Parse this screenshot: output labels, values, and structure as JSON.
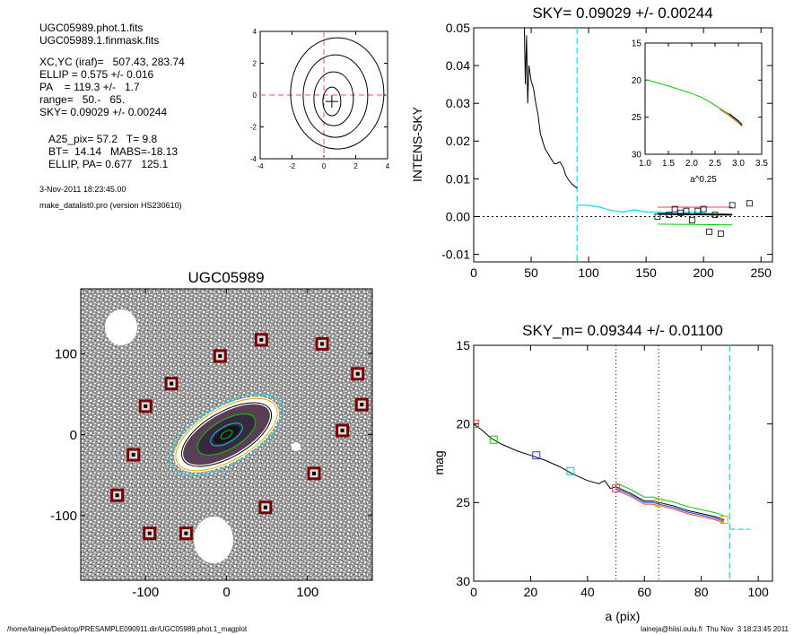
{
  "info": {
    "lines": [
      "UGC05989.phot.1.fits",
      "UGC05989.1.finmask.fits",
      "XC,YC (iraf)=   507.43, 283.74",
      "ELLIP = 0.575 +/- 0.016",
      "PA    = 119.3 +/-   1.7",
      "range=   50.-   65.",
      "SKY= 0.09029 +/- 0.00244",
      "A25_pix= 57.2   T= 9.8",
      "BT=  14.14   MABS=-18.13",
      "ELLIP, PA= 0.677   125.1"
    ],
    "date": "3-Nov-2011 18:23:45.00",
    "program": "make_datalist0.pro (version HS230610)"
  },
  "footer": {
    "left": "/home/laineja/Desktop/PRESAMPLE090911.dir/UGC05989.phot.1_magplot",
    "right": "laineja@hiisi.oulu.fi  Thu Nov  3 18:23:45 2011"
  },
  "colors": {
    "sky_line": "#00e0ff",
    "red": "#ff4040",
    "green": "#00cc00",
    "blue": "#2040ff",
    "yellow": "#d0b000",
    "mask": "#7a0000"
  },
  "chart_data": [
    {
      "type": "contour",
      "title": "",
      "xlim": [
        -4,
        4
      ],
      "ylim": [
        -4,
        4
      ],
      "xticks": [
        "-4",
        "-2",
        "0",
        "2",
        "4"
      ],
      "yticks": [
        "-4",
        "-2",
        "0",
        "2",
        "4"
      ],
      "center": [
        0.5,
        -0.4
      ]
    },
    {
      "type": "line",
      "title": "SKY= 0.09029 +/- 0.00244",
      "xlabel": "",
      "ylabel": "INTENS-SKY",
      "xlim": [
        0,
        260
      ],
      "ylim": [
        -0.012,
        0.05
      ],
      "xticks": [
        "0",
        "50",
        "100",
        "150",
        "200",
        "250"
      ],
      "yticks": [
        "-0.01",
        "0.00",
        "0.01",
        "0.02",
        "0.03",
        "0.04",
        "0.05"
      ],
      "sky_radius": 90,
      "profile_x": [
        44,
        45,
        46,
        47,
        48,
        50,
        52,
        54,
        56,
        58,
        60,
        62,
        64,
        66,
        68,
        70,
        72,
        75,
        78,
        80,
        83,
        86,
        88,
        90
      ],
      "profile_y": [
        0.05,
        0.035,
        0.048,
        0.03,
        0.04,
        0.036,
        0.034,
        0.03,
        0.027,
        0.022,
        0.02,
        0.018,
        0.017,
        0.016,
        0.015,
        0.014,
        0.014,
        0.0145,
        0.013,
        0.011,
        0.0095,
        0.0085,
        0.008,
        0.0075
      ],
      "sky_x": [
        90,
        100,
        110,
        115,
        120,
        130,
        140,
        150,
        160,
        175,
        190,
        205,
        220
      ],
      "sky_y": [
        0.003,
        0.003,
        0.0025,
        0.002,
        0.0016,
        0.0012,
        0.0018,
        0.0012,
        0.0012,
        0.0008,
        0.0012,
        0.0008,
        0.0006
      ],
      "points_x": [
        160,
        170,
        175,
        180,
        185,
        190,
        195,
        200,
        205,
        210,
        215,
        225,
        240
      ],
      "points_y": [
        0.0,
        0.0005,
        0.002,
        0.001,
        0.0015,
        -0.001,
        0.0015,
        0.002,
        -0.004,
        0.0005,
        -0.0045,
        0.003,
        0.0035
      ],
      "inset": {
        "xlabel": "a^0.25",
        "xlim": [
          1.0,
          3.5
        ],
        "ylim": [
          15,
          30
        ],
        "xticks": [
          "1.0",
          "1.5",
          "2.0",
          "2.5",
          "3.0",
          "3.5"
        ],
        "yticks": [
          "15",
          "20",
          "25",
          "30"
        ],
        "x": [
          1.0,
          1.5,
          2.0,
          2.2,
          2.4,
          2.6,
          2.8,
          2.9,
          3.0,
          3.08
        ],
        "y": [
          19.9,
          20.8,
          21.8,
          22.3,
          23.0,
          23.8,
          24.6,
          25.1,
          25.6,
          26.1
        ]
      }
    },
    {
      "type": "image",
      "title": "UGC05989",
      "xlim": [
        -180,
        180
      ],
      "ylim": [
        -180,
        180
      ],
      "xticks": [
        "-100",
        "0",
        "100"
      ],
      "yticks": [
        "-100",
        "0",
        "100"
      ],
      "boxes": [
        [
          -135,
          -75
        ],
        [
          -95,
          -122
        ],
        [
          -50,
          -122
        ],
        [
          -115,
          -25
        ],
        [
          -100,
          35
        ],
        [
          -68,
          63
        ],
        [
          -8,
          97
        ],
        [
          43,
          117
        ],
        [
          118,
          112
        ],
        [
          162,
          75
        ],
        [
          167,
          37
        ],
        [
          143,
          5
        ],
        [
          108,
          -48
        ],
        [
          48,
          -90
        ]
      ],
      "ellipses": [
        {
          "a": 8,
          "b": 4,
          "color": "#00cc00"
        },
        {
          "a": 22,
          "b": 10,
          "color": "#00cccc"
        },
        {
          "a": 40,
          "b": 18,
          "color": "#00cc00"
        },
        {
          "a": 62,
          "b": 28,
          "color": "#000000"
        },
        {
          "a": 70,
          "b": 32,
          "color": "#d0b000"
        },
        {
          "a": 78,
          "b": 36,
          "color": "#00e0ff"
        }
      ],
      "pa": 30
    },
    {
      "type": "line",
      "title": "SKY_m=  0.09344 +/- 0.01100",
      "xlabel": "a (pix)",
      "ylabel": "mag",
      "xlim": [
        0,
        105
      ],
      "ylim": [
        30,
        15
      ],
      "xticks": [
        "0",
        "20",
        "40",
        "60",
        "80",
        "100"
      ],
      "yticks": [
        "15",
        "20",
        "25",
        "30"
      ],
      "vlines": [
        50,
        65
      ],
      "sky_radius": 90,
      "sky_level": 26.7,
      "x": [
        0,
        3,
        6,
        10,
        15,
        20,
        25,
        30,
        35,
        40,
        44,
        46,
        48,
        50,
        55,
        60,
        63,
        65,
        70,
        75,
        80,
        85,
        88
      ],
      "y": [
        20.0,
        20.4,
        20.9,
        21.3,
        21.7,
        22.0,
        22.3,
        22.7,
        23.2,
        23.6,
        23.8,
        23.6,
        24.1,
        24.0,
        24.4,
        24.9,
        24.9,
        25.0,
        25.2,
        25.5,
        25.7,
        25.9,
        26.1
      ],
      "markers": [
        {
          "x": 0.5,
          "y": 20.0,
          "color": "#ff4040"
        },
        {
          "x": 7,
          "y": 21.0,
          "color": "#00cc00"
        },
        {
          "x": 22,
          "y": 22.0,
          "color": "#2040ff"
        },
        {
          "x": 34,
          "y": 23.0,
          "color": "#00cccc"
        },
        {
          "x": 50,
          "y": 24.1,
          "color": "#ff4040"
        },
        {
          "x": 65,
          "y": 25.0,
          "color": "#d0b000"
        },
        {
          "x": 88,
          "y": 26.1,
          "color": "#d0b000"
        }
      ]
    }
  ]
}
